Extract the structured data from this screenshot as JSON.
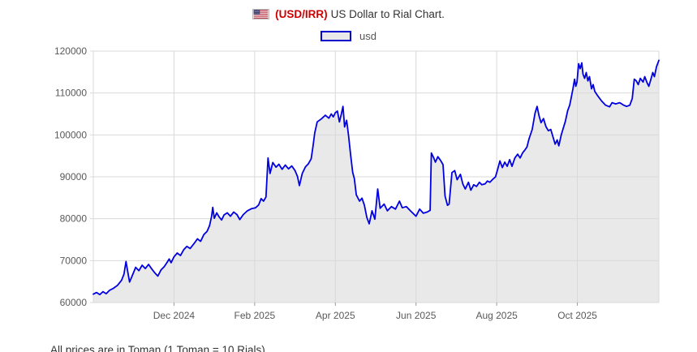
{
  "title": {
    "pair": "(USD/IRR)",
    "rest": "US Dollar to Rial Chart."
  },
  "icons": {
    "flag": "us-flag-icon"
  },
  "legend": {
    "label": "usd"
  },
  "footnote": "All prices are in Toman (1 Toman = 10 Rials)",
  "colors": {
    "line": "#0000e0",
    "fill": "#e9e9e9",
    "grid": "#d9d9d9",
    "axis_tick": "#999999",
    "axis_text": "#595959",
    "title_accent": "#cc0000",
    "title_text": "#333333",
    "legend_border": "#0000cc"
  },
  "chart_data": {
    "type": "area",
    "title": "(USD/IRR) US Dollar to Rial Chart.",
    "series_name": "usd",
    "xlabel": "",
    "ylabel": "",
    "grid": true,
    "legend_position": "top-center",
    "y_axis": {
      "range": [
        60000,
        120000
      ],
      "tick_step": 10000,
      "ticks": [
        60000,
        70000,
        80000,
        90000,
        100000,
        110000,
        120000
      ]
    },
    "x_axis": {
      "unit": "months, 0 = Oct 2024",
      "range": [
        0,
        14.02
      ],
      "ticks": [
        {
          "pos": 2,
          "label": "Dec 2024"
        },
        {
          "pos": 4,
          "label": "Feb 2025"
        },
        {
          "pos": 6,
          "label": "Apr 2025"
        },
        {
          "pos": 8,
          "label": "Jun 2025"
        },
        {
          "pos": 10,
          "label": "Aug 2025"
        },
        {
          "pos": 12,
          "label": "Oct 2025"
        }
      ]
    },
    "points": [
      [
        0,
        62000
      ],
      [
        0.08,
        62400
      ],
      [
        0.16,
        61900
      ],
      [
        0.24,
        62600
      ],
      [
        0.32,
        62100
      ],
      [
        0.4,
        62900
      ],
      [
        0.5,
        63400
      ],
      [
        0.6,
        64100
      ],
      [
        0.7,
        65300
      ],
      [
        0.76,
        66800
      ],
      [
        0.81,
        69800
      ],
      [
        0.85,
        67500
      ],
      [
        0.9,
        64900
      ],
      [
        0.97,
        66500
      ],
      [
        1.05,
        68400
      ],
      [
        1.13,
        67600
      ],
      [
        1.21,
        68900
      ],
      [
        1.29,
        68100
      ],
      [
        1.37,
        69100
      ],
      [
        1.45,
        68000
      ],
      [
        1.53,
        67000
      ],
      [
        1.6,
        66300
      ],
      [
        1.68,
        67800
      ],
      [
        1.76,
        68600
      ],
      [
        1.83,
        69600
      ],
      [
        1.88,
        70400
      ],
      [
        1.93,
        69500
      ],
      [
        2,
        70900
      ],
      [
        2.08,
        71800
      ],
      [
        2.16,
        71200
      ],
      [
        2.24,
        72600
      ],
      [
        2.32,
        73400
      ],
      [
        2.4,
        72900
      ],
      [
        2.5,
        74100
      ],
      [
        2.58,
        75200
      ],
      [
        2.66,
        74600
      ],
      [
        2.74,
        76200
      ],
      [
        2.82,
        77000
      ],
      [
        2.88,
        78300
      ],
      [
        2.93,
        80500
      ],
      [
        2.96,
        82700
      ],
      [
        3,
        80100
      ],
      [
        3.06,
        81400
      ],
      [
        3.12,
        80400
      ],
      [
        3.18,
        79700
      ],
      [
        3.24,
        80900
      ],
      [
        3.32,
        81400
      ],
      [
        3.4,
        80600
      ],
      [
        3.48,
        81600
      ],
      [
        3.56,
        81000
      ],
      [
        3.63,
        79800
      ],
      [
        3.72,
        81000
      ],
      [
        3.82,
        81900
      ],
      [
        3.92,
        82400
      ],
      [
        4.02,
        82600
      ],
      [
        4.1,
        83300
      ],
      [
        4.16,
        84800
      ],
      [
        4.22,
        84200
      ],
      [
        4.28,
        85200
      ],
      [
        4.33,
        94500
      ],
      [
        4.38,
        90800
      ],
      [
        4.45,
        93400
      ],
      [
        4.53,
        92300
      ],
      [
        4.6,
        93000
      ],
      [
        4.68,
        91800
      ],
      [
        4.76,
        92800
      ],
      [
        4.84,
        91900
      ],
      [
        4.92,
        92600
      ],
      [
        5,
        91500
      ],
      [
        5.06,
        90100
      ],
      [
        5.11,
        87900
      ],
      [
        5.18,
        90800
      ],
      [
        5.26,
        92400
      ],
      [
        5.33,
        93100
      ],
      [
        5.4,
        94300
      ],
      [
        5.45,
        97500
      ],
      [
        5.49,
        100500
      ],
      [
        5.55,
        103100
      ],
      [
        5.65,
        103800
      ],
      [
        5.75,
        104700
      ],
      [
        5.84,
        104000
      ],
      [
        5.9,
        105000
      ],
      [
        5.95,
        104300
      ],
      [
        6,
        105300
      ],
      [
        6.05,
        105700
      ],
      [
        6.1,
        103100
      ],
      [
        6.15,
        105000
      ],
      [
        6.19,
        106800
      ],
      [
        6.23,
        101900
      ],
      [
        6.28,
        103500
      ],
      [
        6.33,
        99600
      ],
      [
        6.38,
        95100
      ],
      [
        6.43,
        91000
      ],
      [
        6.47,
        89600
      ],
      [
        6.52,
        85700
      ],
      [
        6.6,
        84200
      ],
      [
        6.66,
        84900
      ],
      [
        6.72,
        83200
      ],
      [
        6.78,
        80300
      ],
      [
        6.84,
        78800
      ],
      [
        6.91,
        81900
      ],
      [
        6.98,
        79900
      ],
      [
        7.05,
        87100
      ],
      [
        7.11,
        82500
      ],
      [
        7.21,
        83500
      ],
      [
        7.29,
        81900
      ],
      [
        7.39,
        82900
      ],
      [
        7.49,
        82300
      ],
      [
        7.59,
        84200
      ],
      [
        7.66,
        82600
      ],
      [
        7.76,
        82900
      ],
      [
        7.86,
        81900
      ],
      [
        8,
        80600
      ],
      [
        8.09,
        82300
      ],
      [
        8.18,
        81300
      ],
      [
        8.28,
        81600
      ],
      [
        8.35,
        82000
      ],
      [
        8.38,
        95700
      ],
      [
        8.44,
        94500
      ],
      [
        8.48,
        93500
      ],
      [
        8.54,
        94800
      ],
      [
        8.61,
        93900
      ],
      [
        8.67,
        92900
      ],
      [
        8.72,
        85400
      ],
      [
        8.78,
        83200
      ],
      [
        8.82,
        83500
      ],
      [
        8.89,
        91000
      ],
      [
        8.96,
        91500
      ],
      [
        9.02,
        89300
      ],
      [
        9.1,
        90600
      ],
      [
        9.16,
        88300
      ],
      [
        9.22,
        87100
      ],
      [
        9.3,
        88700
      ],
      [
        9.36,
        86800
      ],
      [
        9.43,
        88100
      ],
      [
        9.5,
        87700
      ],
      [
        9.57,
        88700
      ],
      [
        9.63,
        88100
      ],
      [
        9.71,
        88300
      ],
      [
        9.77,
        89000
      ],
      [
        9.83,
        88700
      ],
      [
        9.89,
        89300
      ],
      [
        9.97,
        90000
      ],
      [
        10.03,
        92000
      ],
      [
        10.08,
        93800
      ],
      [
        10.14,
        92200
      ],
      [
        10.2,
        93500
      ],
      [
        10.26,
        92500
      ],
      [
        10.32,
        94100
      ],
      [
        10.38,
        92500
      ],
      [
        10.45,
        94500
      ],
      [
        10.52,
        95400
      ],
      [
        10.58,
        94500
      ],
      [
        10.64,
        95700
      ],
      [
        10.7,
        96400
      ],
      [
        10.75,
        97100
      ],
      [
        10.8,
        99000
      ],
      [
        10.88,
        101300
      ],
      [
        10.95,
        105200
      ],
      [
        11,
        106800
      ],
      [
        11.05,
        104600
      ],
      [
        11.1,
        102900
      ],
      [
        11.16,
        103900
      ],
      [
        11.22,
        102000
      ],
      [
        11.28,
        101000
      ],
      [
        11.34,
        101300
      ],
      [
        11.4,
        99400
      ],
      [
        11.45,
        97800
      ],
      [
        11.5,
        98800
      ],
      [
        11.54,
        97400
      ],
      [
        11.6,
        100000
      ],
      [
        11.64,
        101300
      ],
      [
        11.7,
        103200
      ],
      [
        11.76,
        105800
      ],
      [
        11.81,
        107100
      ],
      [
        11.85,
        109000
      ],
      [
        11.89,
        111000
      ],
      [
        11.93,
        113300
      ],
      [
        11.96,
        111600
      ],
      [
        11.99,
        112600
      ],
      [
        12.03,
        117000
      ],
      [
        12.07,
        115800
      ],
      [
        12.11,
        117200
      ],
      [
        12.14,
        114500
      ],
      [
        12.18,
        113500
      ],
      [
        12.22,
        114900
      ],
      [
        12.26,
        112900
      ],
      [
        12.3,
        113900
      ],
      [
        12.35,
        111000
      ],
      [
        12.39,
        112000
      ],
      [
        12.43,
        110400
      ],
      [
        12.5,
        109400
      ],
      [
        12.6,
        108100
      ],
      [
        12.7,
        107100
      ],
      [
        12.8,
        106700
      ],
      [
        12.86,
        107700
      ],
      [
        12.95,
        107400
      ],
      [
        13.05,
        107700
      ],
      [
        13.15,
        107100
      ],
      [
        13.22,
        106800
      ],
      [
        13.3,
        107100
      ],
      [
        13.36,
        108700
      ],
      [
        13.41,
        113300
      ],
      [
        13.46,
        112900
      ],
      [
        13.51,
        112000
      ],
      [
        13.56,
        113500
      ],
      [
        13.63,
        112600
      ],
      [
        13.67,
        113900
      ],
      [
        13.73,
        112400
      ],
      [
        13.77,
        111600
      ],
      [
        13.81,
        112900
      ],
      [
        13.87,
        114900
      ],
      [
        13.91,
        113900
      ],
      [
        13.96,
        116200
      ],
      [
        14.02,
        117800
      ]
    ]
  }
}
